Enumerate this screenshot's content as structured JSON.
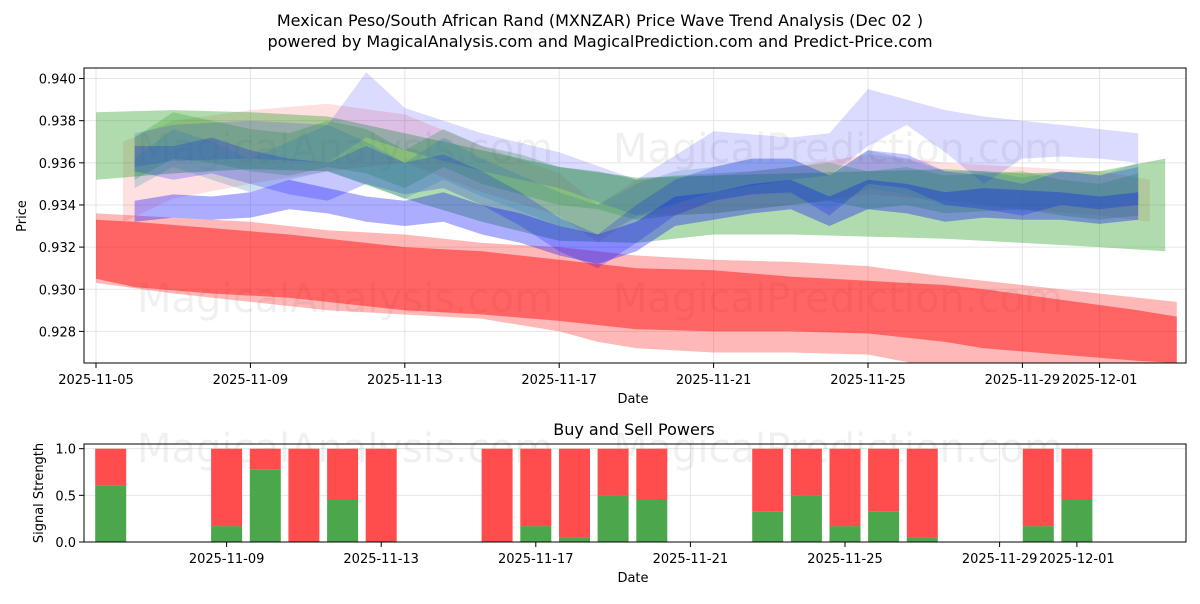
{
  "figure": {
    "title_line1": "Mexican Peso/South African Rand (MXNZAR) Price Wave Trend Analysis (Dec 02 )",
    "title_line2": "powered by MagicalAnalysis.com and MagicalPrediction.com and Predict-Price.com",
    "watermarks": [
      "MagicalAnalysis.com",
      "MagicalPrediction.com"
    ]
  },
  "colors": {
    "red_band": "#ff0000",
    "green_band": "#2ca02c",
    "blue_band": "#0000ff",
    "buy_bar": "#4ca64c",
    "sell_bar": "#ff4c4c",
    "grid": "#e6e6e6"
  },
  "chart_data": [
    {
      "type": "area",
      "title": "",
      "xlabel": "Date",
      "ylabel": "Price",
      "xlim": [
        "2025-11-05",
        "2025-12-03"
      ],
      "ylim": [
        0.9265,
        0.9405
      ],
      "yticks": [
        0.928,
        0.93,
        0.932,
        0.934,
        0.936,
        0.938,
        0.94
      ],
      "ytick_labels": [
        "0.928",
        "0.930",
        "0.932",
        "0.934",
        "0.936",
        "0.938",
        "0.940"
      ],
      "xticks": [
        "2025-11-05",
        "2025-11-09",
        "2025-11-13",
        "2025-11-17",
        "2025-11-21",
        "2025-11-25",
        "2025-11-29",
        "2025-12-01"
      ],
      "grid": true,
      "series": [
        {
          "name": "red-main",
          "color": "red",
          "opacity": 0.45,
          "x": [
            0,
            1,
            3,
            5,
            7,
            8,
            10,
            12,
            14,
            16,
            18,
            20,
            22,
            23,
            25,
            27,
            28
          ],
          "lower": [
            0.9305,
            0.9301,
            0.9298,
            0.9296,
            0.9292,
            0.929,
            0.9288,
            0.9285,
            0.9281,
            0.928,
            0.928,
            0.9279,
            0.9275,
            0.9272,
            0.9269,
            0.9266,
            0.9265
          ],
          "upper": [
            0.9333,
            0.9332,
            0.9329,
            0.9326,
            0.9322,
            0.932,
            0.9318,
            0.9314,
            0.931,
            0.9309,
            0.9306,
            0.9304,
            0.9302,
            0.93,
            0.9295,
            0.929,
            0.9287
          ]
        },
        {
          "name": "red-wide",
          "color": "red",
          "opacity": 0.28,
          "x": [
            0,
            2,
            4,
            6,
            8,
            10,
            12,
            13,
            14,
            16,
            18,
            20,
            22,
            24,
            26,
            28
          ],
          "lower": [
            0.9303,
            0.9298,
            0.9294,
            0.929,
            0.9288,
            0.9286,
            0.928,
            0.9275,
            0.9272,
            0.927,
            0.927,
            0.9269,
            0.9262,
            0.9258,
            0.9255,
            0.9252
          ],
          "upper": [
            0.9336,
            0.9334,
            0.9332,
            0.9328,
            0.9326,
            0.9322,
            0.932,
            0.9318,
            0.9316,
            0.9314,
            0.9313,
            0.9311,
            0.9306,
            0.9302,
            0.9298,
            0.9294
          ]
        },
        {
          "name": "salmon",
          "color": "red",
          "opacity": 0.12,
          "x": [
            0.7,
            2,
            4,
            6,
            8,
            10,
            12,
            13,
            14,
            16,
            18,
            20,
            22,
            24,
            26,
            27.3
          ],
          "lower": [
            0.9332,
            0.9343,
            0.935,
            0.9356,
            0.936,
            0.9346,
            0.9335,
            0.9322,
            0.9335,
            0.9336,
            0.934,
            0.9345,
            0.9342,
            0.9338,
            0.9335,
            0.9332
          ],
          "upper": [
            0.937,
            0.938,
            0.9385,
            0.9388,
            0.9383,
            0.9368,
            0.9355,
            0.934,
            0.9352,
            0.9354,
            0.9358,
            0.9364,
            0.936,
            0.9358,
            0.9356,
            0.9352
          ]
        },
        {
          "name": "green-wide",
          "color": "green",
          "opacity": 0.38,
          "x": [
            0,
            2,
            4,
            6,
            8,
            10,
            12,
            14,
            16,
            18,
            20,
            22,
            24,
            26,
            27.7
          ],
          "lower": [
            0.9352,
            0.9355,
            0.9357,
            0.9356,
            0.9343,
            0.9332,
            0.9323,
            0.9322,
            0.9326,
            0.9326,
            0.9325,
            0.9324,
            0.9322,
            0.932,
            0.9318
          ],
          "upper": [
            0.9384,
            0.9385,
            0.9384,
            0.9382,
            0.9374,
            0.9366,
            0.9358,
            0.9353,
            0.9354,
            0.9355,
            0.9356,
            0.9357,
            0.9355,
            0.9356,
            0.9362
          ]
        },
        {
          "name": "green-wave",
          "color": "green",
          "opacity": 0.28,
          "x": [
            1,
            2,
            3,
            4,
            5,
            6,
            7,
            8,
            9,
            10,
            11,
            12,
            13,
            14,
            15,
            16,
            17,
            18,
            19,
            20,
            21,
            22,
            23,
            24,
            25,
            26,
            27
          ],
          "lower": [
            0.9352,
            0.9362,
            0.936,
            0.9356,
            0.9354,
            0.9358,
            0.9355,
            0.9348,
            0.9358,
            0.935,
            0.9345,
            0.934,
            0.9338,
            0.9333,
            0.9335,
            0.9336,
            0.9338,
            0.934,
            0.9342,
            0.9338,
            0.934,
            0.9336,
            0.9337,
            0.9338,
            0.9335,
            0.9333,
            0.9335
          ],
          "upper": [
            0.9372,
            0.9384,
            0.938,
            0.9376,
            0.9374,
            0.938,
            0.9376,
            0.9366,
            0.9376,
            0.9368,
            0.9364,
            0.9358,
            0.9356,
            0.9352,
            0.9354,
            0.9355,
            0.9356,
            0.9358,
            0.936,
            0.9356,
            0.9358,
            0.9354,
            0.9355,
            0.9356,
            0.9352,
            0.935,
            0.9355
          ]
        },
        {
          "name": "blue-upper",
          "color": "blue",
          "opacity": 0.14,
          "x": [
            1,
            2,
            4,
            6,
            7,
            8,
            10,
            12,
            14,
            16,
            18,
            19,
            20,
            21,
            22,
            23,
            24,
            25,
            26,
            27
          ],
          "lower": [
            0.9358,
            0.9361,
            0.9362,
            0.936,
            0.9372,
            0.9366,
            0.9356,
            0.9348,
            0.9335,
            0.9346,
            0.9352,
            0.9354,
            0.9368,
            0.9378,
            0.9365,
            0.935,
            0.9362,
            0.9363,
            0.9362,
            0.936
          ],
          "upper": [
            0.9374,
            0.9378,
            0.938,
            0.9378,
            0.9403,
            0.9386,
            0.9374,
            0.9365,
            0.9352,
            0.9375,
            0.9372,
            0.9374,
            0.9395,
            0.939,
            0.9385,
            0.9382,
            0.938,
            0.9378,
            0.9376,
            0.9374
          ]
        },
        {
          "name": "blue-mid",
          "color": "blue",
          "opacity": 0.22,
          "x": [
            1,
            2,
            3,
            4,
            5,
            6,
            7,
            8,
            9,
            10,
            11,
            12,
            13,
            14,
            15,
            16,
            17,
            18,
            19,
            20,
            21,
            22,
            23,
            24,
            25,
            26,
            27
          ],
          "lower": [
            0.9356,
            0.9352,
            0.9355,
            0.935,
            0.9345,
            0.9342,
            0.935,
            0.9345,
            0.9348,
            0.934,
            0.933,
            0.9318,
            0.931,
            0.9322,
            0.9335,
            0.9342,
            0.9345,
            0.9346,
            0.9335,
            0.935,
            0.9348,
            0.934,
            0.9338,
            0.9335,
            0.934,
            0.9338,
            0.934
          ],
          "upper": [
            0.9368,
            0.9368,
            0.9372,
            0.9366,
            0.9362,
            0.936,
            0.9368,
            0.936,
            0.9364,
            0.9356,
            0.9346,
            0.9334,
            0.9326,
            0.934,
            0.9352,
            0.9358,
            0.9362,
            0.9362,
            0.9354,
            0.9366,
            0.9364,
            0.9356,
            0.9354,
            0.935,
            0.9356,
            0.9354,
            0.9358
          ]
        },
        {
          "name": "blue-low",
          "color": "blue",
          "opacity": 0.32,
          "x": [
            1,
            2,
            3,
            4,
            5,
            6,
            7,
            8,
            9,
            10,
            11,
            12,
            13,
            14,
            15,
            16,
            17,
            18,
            19,
            20,
            21,
            22,
            23,
            24,
            25,
            26,
            27
          ],
          "lower": [
            0.9332,
            0.9334,
            0.9333,
            0.9334,
            0.9338,
            0.9336,
            0.9332,
            0.933,
            0.9332,
            0.9326,
            0.9322,
            0.9316,
            0.9312,
            0.9318,
            0.933,
            0.9333,
            0.9336,
            0.9338,
            0.933,
            0.9338,
            0.9336,
            0.9332,
            0.9334,
            0.9333,
            0.9333,
            0.9331,
            0.9333
          ],
          "upper": [
            0.9342,
            0.9345,
            0.9344,
            0.9346,
            0.9352,
            0.9348,
            0.9344,
            0.9342,
            0.9346,
            0.934,
            0.9336,
            0.933,
            0.9326,
            0.9332,
            0.9344,
            0.9346,
            0.935,
            0.9352,
            0.9344,
            0.9352,
            0.935,
            0.9346,
            0.9348,
            0.9347,
            0.9346,
            0.9344,
            0.9346
          ]
        },
        {
          "name": "teal-wave",
          "color": "teal",
          "opacity": 0.22,
          "x": [
            1,
            2,
            3,
            4,
            5,
            6,
            7,
            8,
            9,
            10,
            11,
            12,
            13,
            14,
            15,
            16,
            17,
            18,
            19,
            20,
            21,
            22,
            23,
            24,
            25,
            26,
            27
          ],
          "lower": [
            0.9348,
            0.9358,
            0.9352,
            0.9346,
            0.9352,
            0.9356,
            0.935,
            0.9343,
            0.9352,
            0.9344,
            0.9337,
            0.933,
            0.9325,
            0.9334,
            0.934,
            0.9343,
            0.9346,
            0.9345,
            0.9338,
            0.9348,
            0.9345,
            0.934,
            0.934,
            0.9337,
            0.934,
            0.9338,
            0.9342
          ],
          "upper": [
            0.9362,
            0.9376,
            0.937,
            0.9362,
            0.937,
            0.9378,
            0.937,
            0.936,
            0.9372,
            0.9362,
            0.9354,
            0.9346,
            0.934,
            0.935,
            0.9356,
            0.9358,
            0.9362,
            0.9362,
            0.9354,
            0.9366,
            0.9362,
            0.9356,
            0.9356,
            0.9353,
            0.9356,
            0.9354,
            0.936
          ]
        }
      ]
    },
    {
      "type": "bar",
      "title": "Buy and Sell Powers",
      "xlabel": "Date",
      "ylabel": "Signal Strength",
      "ylim": [
        0,
        1.05
      ],
      "yticks": [
        0.0,
        0.5,
        1.0
      ],
      "ytick_labels": [
        "0.0",
        "0.5",
        "1.0"
      ],
      "xticks": [
        "2025-11-09",
        "2025-11-13",
        "2025-11-17",
        "2025-11-21",
        "2025-11-25",
        "2025-11-29",
        "2025-12-01"
      ],
      "categories": [
        "2025-11-06",
        "2025-11-09",
        "2025-11-10",
        "2025-11-11",
        "2025-11-12",
        "2025-11-13",
        "2025-11-16",
        "2025-11-17",
        "2025-11-18",
        "2025-11-19",
        "2025-11-20",
        "2025-11-23",
        "2025-11-24",
        "2025-11-25",
        "2025-11-26",
        "2025-11-27",
        "2025-11-30",
        "2025-12-01"
      ],
      "series": [
        {
          "name": "Buy",
          "values": [
            0.61,
            0.17,
            0.78,
            0.0,
            0.45,
            0.0,
            0.0,
            0.17,
            0.05,
            0.5,
            0.45,
            0.33,
            0.5,
            0.17,
            0.33,
            0.05,
            0.17,
            0.45
          ]
        },
        {
          "name": "Sell",
          "values": [
            0.39,
            0.83,
            0.22,
            1.0,
            0.55,
            1.0,
            1.0,
            0.83,
            0.95,
            0.5,
            0.55,
            0.67,
            0.5,
            0.83,
            0.67,
            0.95,
            0.83,
            0.55
          ]
        }
      ],
      "grid": true
    }
  ]
}
